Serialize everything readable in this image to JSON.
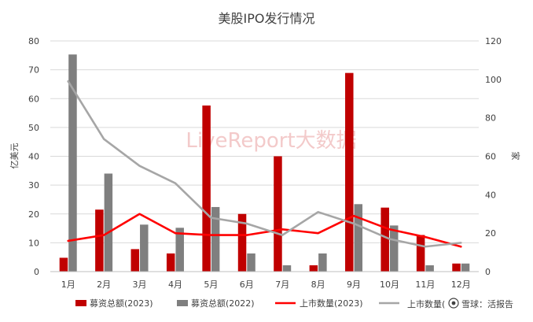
{
  "chart_data": {
    "type": "bar",
    "title": "美股IPO发行情况",
    "ylabel_left": "亿美元",
    "ylabel_right": "家",
    "categories": [
      "1月",
      "2月",
      "3月",
      "4月",
      "5月",
      "6月",
      "7月",
      "8月",
      "9月",
      "10月",
      "11月",
      "12月"
    ],
    "ylim_left": [
      0,
      80
    ],
    "yticks_left": [
      "0",
      "10",
      "20",
      "30",
      "40",
      "50",
      "60",
      "70",
      "80"
    ],
    "ylim_right": [
      0,
      120
    ],
    "yticks_right": [
      "0",
      "20",
      "40",
      "60",
      "80",
      "100",
      "120"
    ],
    "grid": true,
    "legend_position": "bottom",
    "bar_series": [
      {
        "name": "募资总额(2023)",
        "color": "#c00000",
        "axis": "left",
        "values": [
          4.8,
          21.5,
          7.8,
          6.3,
          57.6,
          20.0,
          40.0,
          2.2,
          68.9,
          22.2,
          12.7,
          2.8
        ]
      },
      {
        "name": "募资总额(2022)",
        "color": "#7f7f7f",
        "axis": "left",
        "values": [
          75.3,
          34.0,
          16.3,
          15.2,
          22.4,
          6.3,
          2.2,
          6.3,
          23.4,
          16.0,
          2.2,
          2.8
        ]
      }
    ],
    "line_series": [
      {
        "name": "上市数量(2023)",
        "color": "#ff0000",
        "axis": "right",
        "values": [
          16,
          19,
          30,
          20,
          19,
          19,
          22,
          20,
          29,
          22,
          18,
          13
        ]
      },
      {
        "name": "上市数量(2022)",
        "color": "#a6a6a6",
        "axis": "right",
        "values": [
          99,
          69,
          55,
          46,
          28,
          25,
          19,
          31,
          25,
          17,
          13,
          15
        ]
      }
    ]
  },
  "watermark": "LiveReport大数据",
  "footer_badge": {
    "text": "雪球：活报告",
    "legend_overlay": "上市数量("
  }
}
